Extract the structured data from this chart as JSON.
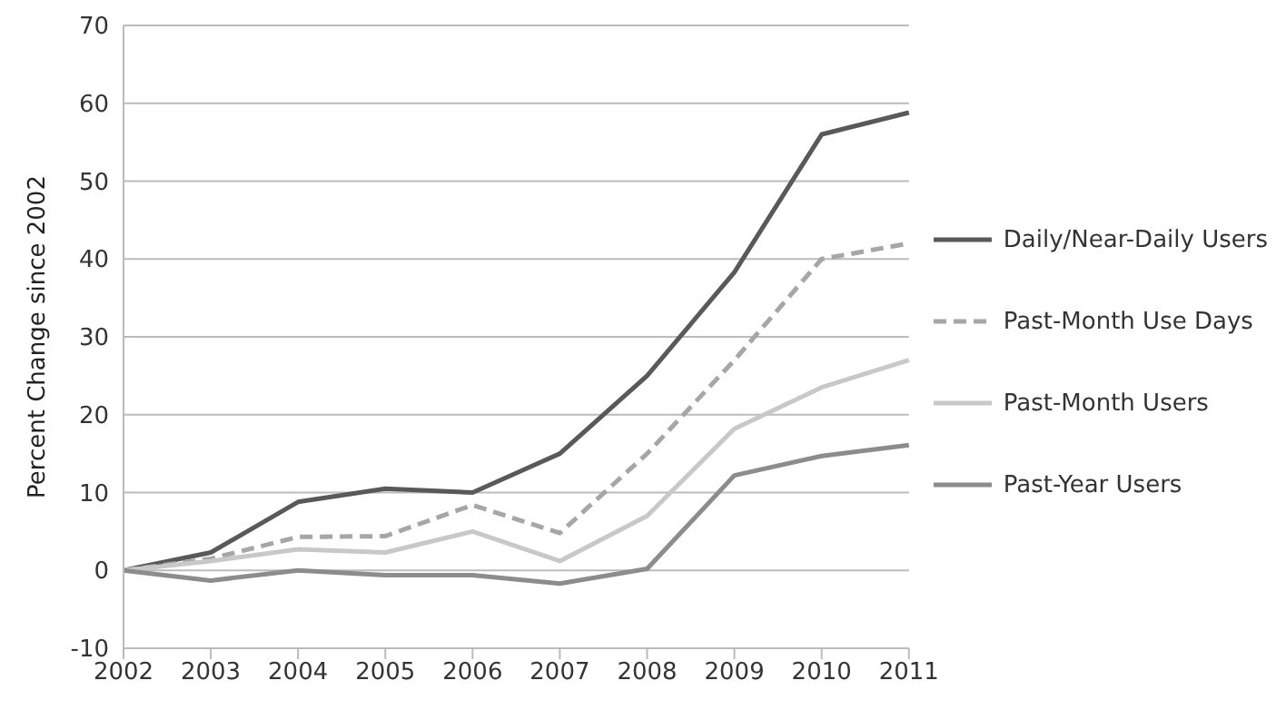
{
  "chart_data": {
    "type": "line",
    "ylabel": "Percent Change since 2002",
    "categories": [
      "2002",
      "2003",
      "2004",
      "2005",
      "2006",
      "2007",
      "2008",
      "2009",
      "2010",
      "2011"
    ],
    "series": [
      {
        "name": "Daily/Near-Daily Users",
        "color": "#595959",
        "line_style": "solid",
        "values": [
          0,
          2.3,
          8.8,
          10.5,
          10,
          15,
          25,
          38.3,
          56,
          58.8
        ]
      },
      {
        "name": "Past-Month Use Days",
        "color": "#a6a6a6",
        "line_style": "dashed",
        "values": [
          0,
          1.5,
          4.3,
          4.4,
          8.4,
          4.8,
          15,
          27,
          40,
          42
        ]
      },
      {
        "name": "Past-Month Users",
        "color": "#c8c8c8",
        "line_style": "solid",
        "values": [
          0,
          1.2,
          2.7,
          2.3,
          5,
          1.2,
          7,
          18.2,
          23.5,
          27
        ]
      },
      {
        "name": "Past-Year Users",
        "color": "#8c8c8c",
        "line_style": "solid",
        "values": [
          0,
          -1.3,
          0,
          -0.6,
          -0.6,
          -1.7,
          0.2,
          12.2,
          14.7,
          16.1
        ]
      }
    ],
    "ylim": [
      -10,
      70
    ],
    "yticks": [
      -10,
      0,
      10,
      20,
      30,
      40,
      50,
      60,
      70
    ],
    "grid": "y",
    "legend": "right",
    "marker": "none"
  }
}
